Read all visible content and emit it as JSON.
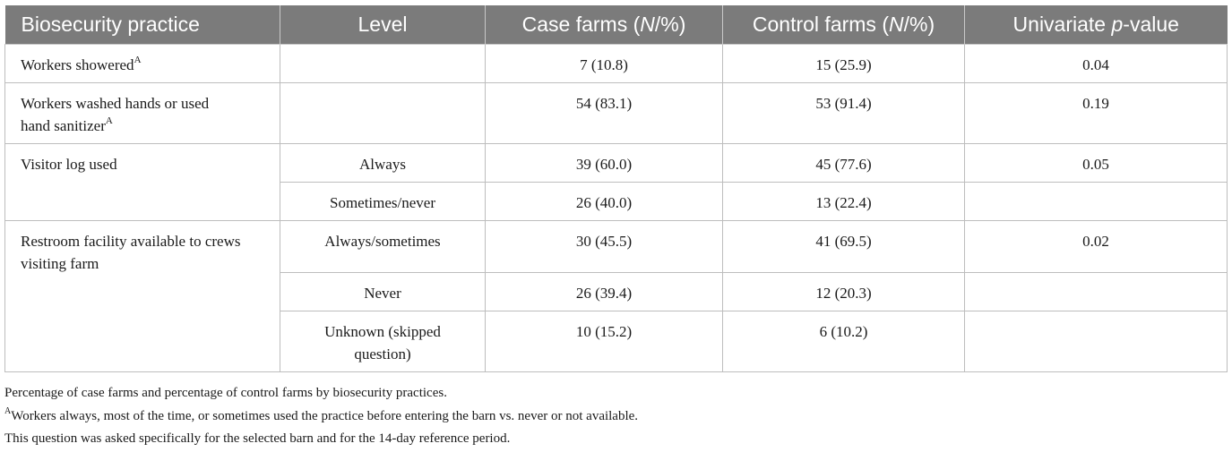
{
  "header": {
    "col_practice": "Biosecurity practice",
    "col_level": "Level",
    "col_case_pre": "Case farms (",
    "col_case_it": "N",
    "col_case_post": "/%)",
    "col_control_pre": "Control farms (",
    "col_control_it": "N",
    "col_control_post": "/%)",
    "col_p_pre": "Univariate ",
    "col_p_it": "p",
    "col_p_post": "-value"
  },
  "rows": [
    {
      "practice": "Workers showered",
      "sup": "A",
      "level": "",
      "case": "7 (10.8)",
      "control": "15 (25.9)",
      "p": "0.04"
    },
    {
      "practice_l1": "Workers washed hands or used",
      "practice_l2": "hand sanitizer",
      "sup": "A",
      "level": "",
      "case": "54 (83.1)",
      "control": "53 (91.4)",
      "p": "0.19"
    },
    {
      "practice": "Visitor log used",
      "level": "Always",
      "case": "39 (60.0)",
      "control": "45 (77.6)",
      "p": "0.05"
    },
    {
      "level": "Sometimes/never",
      "case": "26 (40.0)",
      "control": "13 (22.4)",
      "p": ""
    },
    {
      "practice_l1": "Restroom facility available to crews",
      "practice_l2": "visiting farm",
      "level": "Always/sometimes",
      "case": "30 (45.5)",
      "control": "41 (69.5)",
      "p": "0.02"
    },
    {
      "level": "Never",
      "case": "26 (39.4)",
      "control": "12 (20.3)",
      "p": ""
    },
    {
      "level_l1": "Unknown (skipped",
      "level_l2": "question)",
      "case": "10 (15.2)",
      "control": "6 (10.2)",
      "p": ""
    }
  ],
  "footnotes": {
    "note1": "Percentage of case farms and percentage of control farms by biosecurity practices.",
    "note2_sup": "A",
    "note2": "Workers always, most of the time, or sometimes used the practice before entering the barn vs. never or not available.",
    "note3": "This question was asked specifically for the selected barn and for the 14-day reference period."
  }
}
